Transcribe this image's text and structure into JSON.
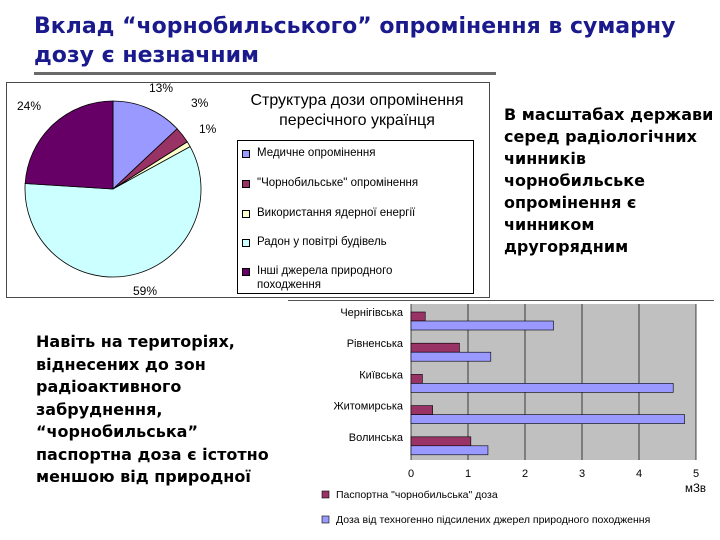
{
  "slide": {
    "title": "Вклад “чорнобильського” опромінення в сумарну дозу є незначним",
    "right_text": "В масштабах держави серед радіологічних чинників чорнобильське опромінення є чинником другорядним",
    "left_text": "Навіть на територіях, віднесених до зон радіоактивного забруднення, “чорнобильська” паспортна доза є істотно меншою від природної"
  },
  "colors": {
    "title": "#1a1a8c",
    "medical": "#9999ff",
    "chernobyl": "#993366",
    "nuclear": "#ffffcc",
    "radon": "#ccffff",
    "other": "#660066",
    "passport": "#993366",
    "radon_bar": "#9999ff"
  },
  "chart_data": [
    {
      "type": "pie",
      "title": "Структура дози опромінення пересічного українця",
      "slices": [
        {
          "name": "Медичне опромінення",
          "value": 13,
          "label": "13%"
        },
        {
          "name": "\"Чорнобильське\" опромінення",
          "value": 3,
          "label": "3%"
        },
        {
          "name": "Використання ядерної енергії",
          "value": 1,
          "label": "1%"
        },
        {
          "name": "Радон у повітрі будівель",
          "value": 59,
          "label": "59%"
        },
        {
          "name": "Інші джерела природного походження",
          "value": 24,
          "label": "24%"
        }
      ],
      "legend": "right"
    },
    {
      "type": "bar",
      "orientation": "horizontal",
      "categories": [
        "Чернігівська",
        "Рівненська",
        "Київська",
        "Житомирська",
        "Волинська"
      ],
      "series": [
        {
          "name": "Паспортна \"чорнобильська\" доза",
          "values": [
            0.25,
            0.85,
            0.2,
            0.38,
            1.05
          ]
        },
        {
          "name": "Доза від техногенно підсилених джерел природного походження",
          "values": [
            2.5,
            1.4,
            4.6,
            4.8,
            1.35
          ]
        }
      ],
      "xlim": [
        0,
        5
      ],
      "xticks": [
        "0",
        "1",
        "2",
        "3",
        "4",
        "5"
      ],
      "xlabel": "мЗв",
      "grid": true,
      "legend": "bottom"
    }
  ]
}
